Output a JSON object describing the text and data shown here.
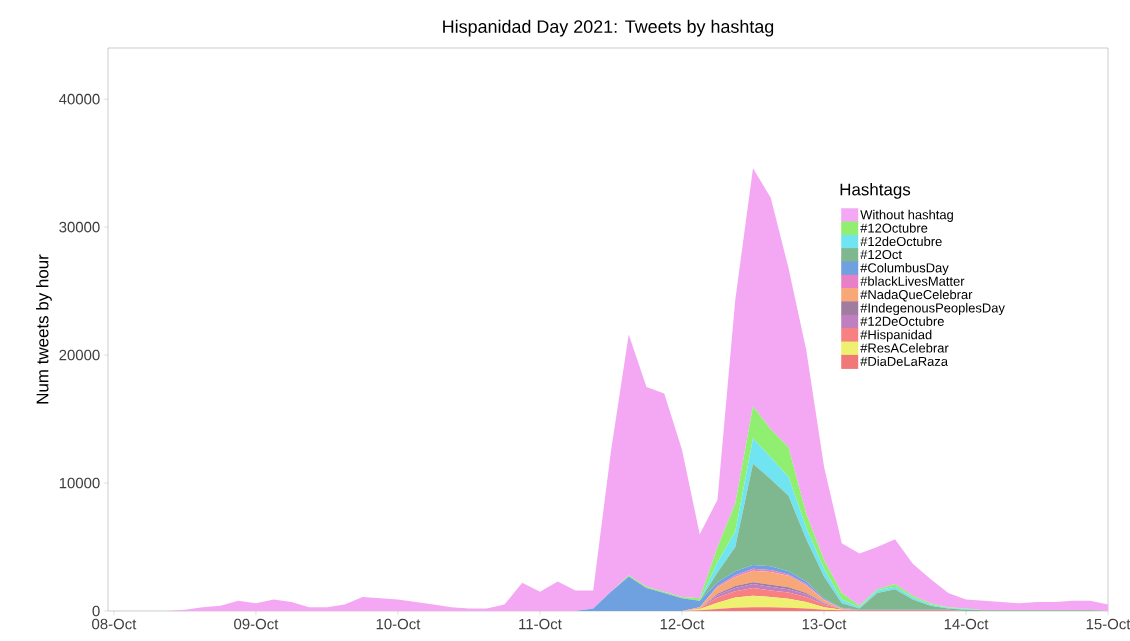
{
  "chart_data": {
    "type": "area",
    "stacked": true,
    "title": "Hispanidad Day 2021: Tweets by hashtag",
    "ylabel": "Num tweets by hour",
    "legend_title": "Hashtags",
    "legend": "top right",
    "grid": false,
    "x": [
      "2021-10-08T00:00",
      "2021-10-08T03:00",
      "2021-10-08T06:00",
      "2021-10-08T09:00",
      "2021-10-08T12:00",
      "2021-10-08T15:00",
      "2021-10-08T18:00",
      "2021-10-08T21:00",
      "2021-10-09T00:00",
      "2021-10-09T03:00",
      "2021-10-09T06:00",
      "2021-10-09T09:00",
      "2021-10-09T12:00",
      "2021-10-09T15:00",
      "2021-10-09T18:00",
      "2021-10-09T21:00",
      "2021-10-10T00:00",
      "2021-10-10T03:00",
      "2021-10-10T06:00",
      "2021-10-10T09:00",
      "2021-10-10T12:00",
      "2021-10-10T15:00",
      "2021-10-10T18:00",
      "2021-10-10T21:00",
      "2021-10-11T00:00",
      "2021-10-11T03:00",
      "2021-10-11T06:00",
      "2021-10-11T09:00",
      "2021-10-11T12:00",
      "2021-10-11T15:00",
      "2021-10-11T18:00",
      "2021-10-11T21:00",
      "2021-10-12T00:00",
      "2021-10-12T03:00",
      "2021-10-12T06:00",
      "2021-10-12T09:00",
      "2021-10-12T12:00",
      "2021-10-12T15:00",
      "2021-10-12T18:00",
      "2021-10-12T21:00",
      "2021-10-13T00:00",
      "2021-10-13T03:00",
      "2021-10-13T06:00",
      "2021-10-13T09:00",
      "2021-10-13T12:00",
      "2021-10-13T15:00",
      "2021-10-13T18:00",
      "2021-10-13T21:00",
      "2021-10-14T00:00",
      "2021-10-14T03:00",
      "2021-10-14T06:00",
      "2021-10-14T09:00",
      "2021-10-14T12:00",
      "2021-10-14T15:00",
      "2021-10-14T18:00",
      "2021-10-14T21:00",
      "2021-10-15T00:00"
    ],
    "xlim": [
      "2021-10-07T23:00",
      "2021-10-15T00:00"
    ],
    "xticks": [
      {
        "value": "2021-10-08",
        "label": "08-Oct"
      },
      {
        "value": "2021-10-09",
        "label": "09-Oct"
      },
      {
        "value": "2021-10-10",
        "label": "10-Oct"
      },
      {
        "value": "2021-10-11",
        "label": "11-Oct"
      },
      {
        "value": "2021-10-12",
        "label": "12-Oct"
      },
      {
        "value": "2021-10-13",
        "label": "13-Oct"
      },
      {
        "value": "2021-10-14",
        "label": "14-Oct"
      },
      {
        "value": "2021-10-15",
        "label": "15-Oct"
      }
    ],
    "ylim": [
      0,
      44000
    ],
    "yticks": [
      0,
      10000,
      20000,
      30000,
      40000
    ],
    "series": [
      {
        "name": "#DiaDeLaRaza",
        "color": "#f07878",
        "values": [
          0,
          0,
          0,
          0,
          0,
          0,
          0,
          0,
          0,
          0,
          0,
          0,
          0,
          0,
          0,
          0,
          0,
          0,
          0,
          0,
          0,
          0,
          0,
          0,
          0,
          0,
          0,
          0,
          0,
          0,
          0,
          0,
          0,
          50,
          150,
          250,
          300,
          300,
          250,
          200,
          100,
          50,
          50,
          50,
          50,
          50,
          50,
          50,
          0,
          0,
          0,
          0,
          0,
          0,
          0,
          0,
          0
        ]
      },
      {
        "name": "#ResACelebrar",
        "color": "#eef070",
        "values": [
          0,
          0,
          0,
          0,
          0,
          0,
          0,
          0,
          0,
          0,
          0,
          0,
          0,
          0,
          0,
          0,
          0,
          0,
          0,
          0,
          0,
          0,
          0,
          0,
          0,
          0,
          0,
          0,
          0,
          0,
          0,
          0,
          0,
          100,
          500,
          800,
          900,
          800,
          700,
          500,
          200,
          50,
          0,
          0,
          0,
          0,
          0,
          0,
          0,
          0,
          0,
          0,
          0,
          0,
          0,
          0,
          0
        ]
      },
      {
        "name": "#Hispanidad",
        "color": "#f88080",
        "values": [
          0,
          0,
          0,
          0,
          0,
          0,
          0,
          0,
          0,
          0,
          0,
          0,
          0,
          0,
          0,
          0,
          0,
          0,
          0,
          0,
          0,
          0,
          0,
          0,
          0,
          0,
          0,
          0,
          0,
          0,
          0,
          0,
          0,
          50,
          400,
          500,
          600,
          500,
          500,
          400,
          200,
          50,
          0,
          0,
          0,
          0,
          0,
          0,
          0,
          0,
          0,
          0,
          0,
          0,
          0,
          0,
          0
        ]
      },
      {
        "name": "#12DeOctubre",
        "color": "#c080c0",
        "values": [
          0,
          0,
          0,
          0,
          0,
          0,
          0,
          0,
          0,
          0,
          0,
          0,
          0,
          0,
          0,
          0,
          0,
          0,
          0,
          0,
          0,
          0,
          0,
          0,
          0,
          0,
          0,
          0,
          0,
          0,
          0,
          0,
          0,
          0,
          200,
          250,
          300,
          300,
          250,
          200,
          100,
          0,
          0,
          0,
          0,
          0,
          0,
          0,
          0,
          0,
          0,
          0,
          0,
          0,
          0,
          0,
          0
        ]
      },
      {
        "name": "#IndegenousPeoplesDay",
        "color": "#a07ca0",
        "values": [
          0,
          0,
          0,
          0,
          0,
          0,
          0,
          0,
          0,
          0,
          0,
          0,
          0,
          0,
          0,
          0,
          0,
          0,
          0,
          0,
          0,
          0,
          0,
          0,
          0,
          0,
          0,
          0,
          0,
          0,
          0,
          0,
          0,
          0,
          100,
          150,
          150,
          150,
          150,
          100,
          50,
          0,
          0,
          0,
          0,
          0,
          0,
          0,
          0,
          0,
          0,
          0,
          0,
          0,
          0,
          0,
          0
        ]
      },
      {
        "name": "#NadaQueCelebrar",
        "color": "#f8a878",
        "values": [
          0,
          0,
          0,
          0,
          0,
          0,
          0,
          0,
          0,
          0,
          0,
          0,
          0,
          0,
          0,
          0,
          0,
          0,
          0,
          0,
          0,
          0,
          0,
          0,
          0,
          0,
          0,
          0,
          0,
          0,
          0,
          0,
          0,
          100,
          500,
          700,
          900,
          1000,
          900,
          600,
          200,
          50,
          0,
          0,
          0,
          0,
          0,
          0,
          0,
          0,
          0,
          0,
          0,
          0,
          0,
          0,
          0
        ]
      },
      {
        "name": "#blackLivesMatter",
        "color": "#e880c8",
        "values": [
          0,
          0,
          0,
          0,
          0,
          0,
          0,
          0,
          0,
          0,
          0,
          0,
          0,
          0,
          0,
          0,
          0,
          0,
          0,
          0,
          0,
          0,
          0,
          0,
          0,
          0,
          0,
          0,
          0,
          0,
          0,
          0,
          0,
          0,
          100,
          150,
          150,
          150,
          100,
          100,
          50,
          0,
          0,
          0,
          0,
          0,
          0,
          0,
          0,
          0,
          0,
          0,
          0,
          0,
          0,
          0,
          0
        ]
      },
      {
        "name": "#ColumbusDay",
        "color": "#6fa0e0",
        "values": [
          0,
          0,
          0,
          0,
          0,
          0,
          0,
          0,
          0,
          0,
          0,
          0,
          0,
          0,
          0,
          0,
          0,
          0,
          0,
          0,
          0,
          0,
          0,
          0,
          0,
          0,
          0,
          200,
          1500,
          2700,
          1800,
          1400,
          1000,
          500,
          300,
          300,
          300,
          300,
          250,
          200,
          100,
          50,
          50,
          50,
          50,
          50,
          50,
          50,
          0,
          0,
          0,
          0,
          0,
          0,
          0,
          0,
          0
        ]
      },
      {
        "name": "#12Oct",
        "color": "#7fb88f",
        "values": [
          0,
          0,
          0,
          0,
          0,
          0,
          0,
          0,
          0,
          0,
          0,
          0,
          0,
          0,
          0,
          0,
          0,
          0,
          0,
          0,
          0,
          0,
          0,
          0,
          0,
          0,
          0,
          0,
          0,
          0,
          0,
          0,
          0,
          0,
          750,
          1900,
          7900,
          6800,
          5900,
          3300,
          1700,
          350,
          100,
          1300,
          1600,
          800,
          300,
          100,
          100,
          50,
          50,
          50,
          50,
          50,
          50,
          50,
          0
        ]
      },
      {
        "name": "#12deOctubre",
        "color": "#70e4f0",
        "values": [
          0,
          0,
          0,
          0,
          0,
          0,
          0,
          0,
          0,
          0,
          0,
          0,
          0,
          0,
          0,
          0,
          0,
          0,
          0,
          0,
          0,
          0,
          0,
          0,
          0,
          0,
          0,
          0,
          0,
          0,
          0,
          0,
          0,
          0,
          800,
          1200,
          2000,
          1700,
          1500,
          900,
          600,
          300,
          100,
          200,
          200,
          150,
          100,
          50,
          50,
          0,
          0,
          0,
          0,
          0,
          0,
          0,
          0
        ]
      },
      {
        "name": "#12Octubre",
        "color": "#90ee70",
        "values": [
          0,
          0,
          0,
          0,
          0,
          0,
          0,
          0,
          0,
          0,
          0,
          0,
          0,
          0,
          0,
          0,
          0,
          0,
          0,
          0,
          0,
          0,
          0,
          0,
          0,
          0,
          0,
          0,
          0,
          100,
          100,
          100,
          100,
          200,
          1200,
          2200,
          2500,
          2200,
          2300,
          1100,
          700,
          500,
          100,
          100,
          200,
          150,
          100,
          50,
          50,
          0,
          0,
          0,
          0,
          0,
          0,
          0,
          0
        ]
      },
      {
        "name": "Without hashtag",
        "color": "#f4a8f4",
        "values": [
          0,
          0,
          0,
          0,
          100,
          300,
          400,
          800,
          600,
          900,
          700,
          300,
          300,
          500,
          1100,
          1000,
          900,
          700,
          500,
          300,
          200,
          200,
          500,
          2200,
          1500,
          2300,
          1600,
          1400,
          11000,
          18800,
          15600,
          15500,
          11500,
          5000,
          3700,
          15900,
          18600,
          18100,
          14000,
          12800,
          7300,
          3900,
          4100,
          3300,
          3500,
          2500,
          1900,
          1100,
          700,
          750,
          650,
          550,
          650,
          650,
          750,
          750,
          500
        ]
      }
    ]
  }
}
